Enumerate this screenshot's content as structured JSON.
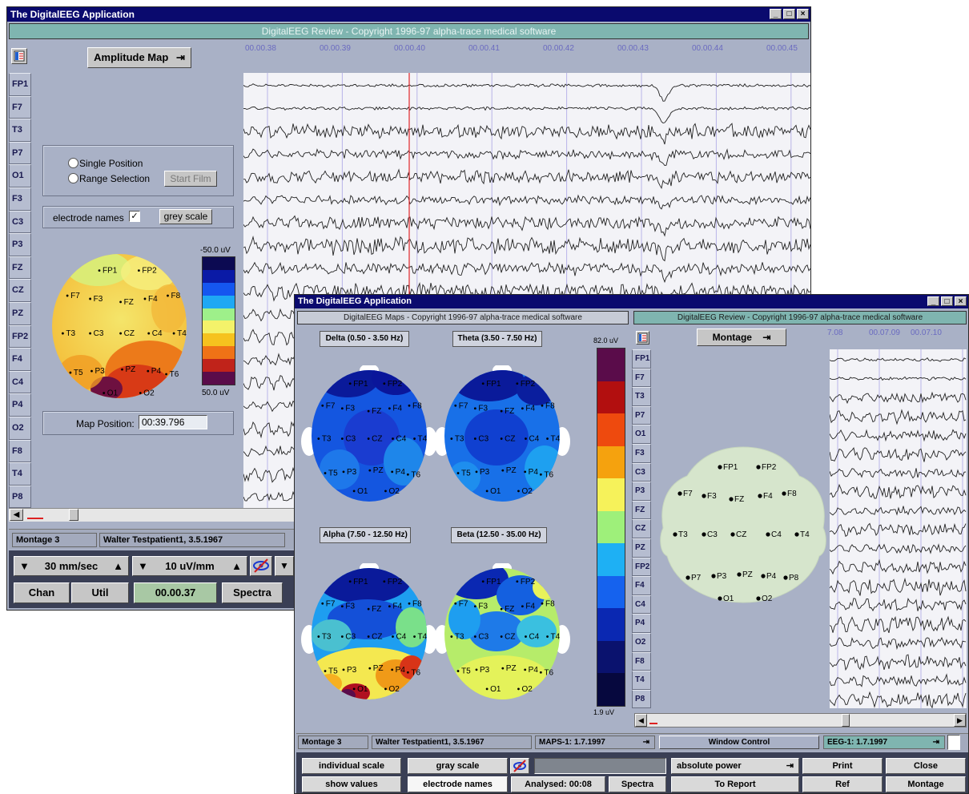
{
  "win1": {
    "title": "The DigitalEEG Application",
    "review_bar": "DigitalEEG Review - Copyright 1996-97 alpha-trace medical software",
    "mode_button": "Amplitude Map",
    "time_ticks": [
      "00.00.38",
      "00.00.39",
      "00.00.40",
      "00.00.41",
      "00.00.42",
      "00.00.43",
      "00.00.44",
      "00.00.45"
    ],
    "channels": [
      "FP1",
      "F7",
      "T3",
      "P7",
      "O1",
      "F3",
      "C3",
      "P3",
      "FZ",
      "CZ",
      "PZ",
      "FP2",
      "F4",
      "C4",
      "P4",
      "O2",
      "F8",
      "T4",
      "P8"
    ],
    "single_position": "Single Position",
    "range_selection": "Range Selection",
    "start_film": "Start Film",
    "electrode_names": "electrode names",
    "grey_scale": "grey scale",
    "scale_top": "-50.0  uV",
    "scale_bottom": "50.0  uV",
    "scale_colors": [
      "#0c0a52",
      "#0a1aa6",
      "#1556f0",
      "#1ea8f4",
      "#9ef08a",
      "#f4f26a",
      "#f6c21e",
      "#ef7216",
      "#c0231a",
      "#5a0c4a"
    ],
    "map_position_label": "Map Position:",
    "map_position_value": "00:39.796",
    "montage": "Montage 3",
    "patient": "Walter Testpatient1, 3.5.1967",
    "speed": "30 mm/sec",
    "sensitivity": "10 uV/mm",
    "chan_btn": "Chan",
    "util_btn": "Util",
    "time_value": "00.00.37",
    "spectra_btn": "Spectra"
  },
  "win2": {
    "title": "The DigitalEEG Application",
    "maps_bar": "DigitalEEG Maps - Copyright 1996-97 alpha-trace medical software",
    "review_bar": "DigitalEEG Review - Copyright 1996-97 alpha-trace medical software",
    "maps": [
      {
        "title": "Delta (0.50 - 3.50 Hz)"
      },
      {
        "title": "Theta (3.50 - 7.50 Hz)"
      },
      {
        "title": "Alpha (7.50 - 12.50 Hz)"
      },
      {
        "title": "Beta (12.50 - 35.00 Hz)"
      }
    ],
    "scale_top": "82.0  uV",
    "scale_bottom": "1.9   uV",
    "scale_colors": [
      "#5a0c4a",
      "#b20f0f",
      "#ee4a0e",
      "#f5a20e",
      "#f6f25a",
      "#9ef07a",
      "#1eb0f4",
      "#1562ee",
      "#0a28b2",
      "#0a126e",
      "#06083e"
    ],
    "montage_button": "Montage",
    "time_ticks": [
      "7.08",
      "00.07.09",
      "00.07.10"
    ],
    "channels": [
      "FP1",
      "F7",
      "T3",
      "P7",
      "O1",
      "F3",
      "C3",
      "P3",
      "FZ",
      "CZ",
      "PZ",
      "FP2",
      "F4",
      "C4",
      "P4",
      "O2",
      "F8",
      "T4",
      "P8"
    ],
    "status": {
      "montage": "Montage 3",
      "patient": "Walter Testpatient1, 3.5.1967",
      "maps": "MAPS-1: 1.7.1997",
      "window_control": "Window Control",
      "eeg": "EEG-1: 1.7.1997"
    },
    "buttons": {
      "individual_scale": "individual scale",
      "gray_scale": "gray scale",
      "absolute_power": "absolute power",
      "print": "Print",
      "close": "Close",
      "show_values": "show values",
      "electrode_names": "electrode names",
      "analysed": "Analysed:  00:08",
      "spectra": "Spectra",
      "to_report": "To Report",
      "ref": "Ref",
      "montage": "Montage"
    }
  },
  "electrodes": [
    "FP1",
    "FP2",
    "F7",
    "F3",
    "FZ",
    "F4",
    "F8",
    "T3",
    "C3",
    "CZ",
    "C4",
    "T4",
    "T5",
    "P3",
    "PZ",
    "P4",
    "T6",
    "O1",
    "O2"
  ],
  "electrodes_montage": [
    "FP1",
    "FP2",
    "F7",
    "F3",
    "FZ",
    "F4",
    "F8",
    "T3",
    "C3",
    "CZ",
    "C4",
    "T4",
    "P7",
    "P3",
    "PZ",
    "P4",
    "P8",
    "O1",
    "O2"
  ],
  "colors": {
    "title_bar": "#0a0a6e",
    "review_bar": "#7fb5b0",
    "window_bg": "#a9b1c6",
    "cursor_line": "#e0262a",
    "montage_head": "#d6e5cc"
  }
}
